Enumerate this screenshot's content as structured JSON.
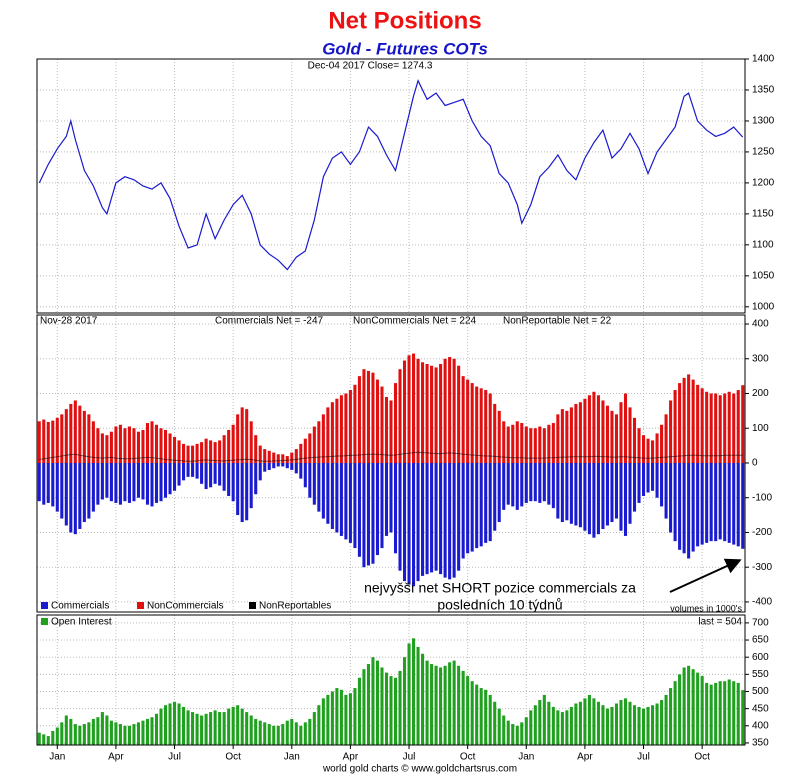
{
  "chart_data": [
    {
      "type": "line",
      "title": "Net Positions",
      "subtitle": "Gold - Futures COTs",
      "header": "Dec-04  2017  Close= 1274.3",
      "color": "#1a1ad0",
      "xlim": [
        -0.5,
        156.5
      ],
      "ylim": [
        990,
        1400
      ],
      "yticks": [
        1000,
        1050,
        1100,
        1150,
        1200,
        1250,
        1300,
        1350,
        1400
      ],
      "grid": true,
      "x": [
        0,
        2,
        4,
        6,
        7,
        8,
        10,
        12,
        14,
        15,
        17,
        19,
        21,
        23,
        25,
        27,
        29,
        31,
        33,
        35,
        37,
        39,
        41,
        43,
        45,
        47,
        49,
        51,
        53,
        55,
        57,
        59,
        61,
        63,
        65,
        67,
        69,
        71,
        73,
        75,
        77,
        79,
        81,
        83,
        84,
        86,
        88,
        90,
        92,
        94,
        96,
        98,
        100,
        102,
        104,
        106,
        107,
        109,
        111,
        113,
        115,
        117,
        119,
        121,
        123,
        125,
        127,
        129,
        131,
        133,
        135,
        137,
        139,
        141,
        143,
        144,
        146,
        148,
        150,
        152,
        154,
        156
      ],
      "values": [
        1200,
        1230,
        1255,
        1275,
        1300,
        1270,
        1220,
        1195,
        1160,
        1150,
        1200,
        1210,
        1205,
        1195,
        1190,
        1200,
        1175,
        1130,
        1095,
        1100,
        1150,
        1110,
        1140,
        1165,
        1180,
        1150,
        1100,
        1085,
        1075,
        1060,
        1080,
        1090,
        1140,
        1210,
        1240,
        1250,
        1230,
        1250,
        1290,
        1275,
        1245,
        1220,
        1280,
        1340,
        1365,
        1335,
        1345,
        1325,
        1330,
        1335,
        1300,
        1275,
        1260,
        1215,
        1200,
        1165,
        1135,
        1165,
        1210,
        1225,
        1245,
        1220,
        1205,
        1240,
        1265,
        1285,
        1240,
        1255,
        1280,
        1255,
        1215,
        1250,
        1270,
        1290,
        1340,
        1345,
        1300,
        1285,
        1275,
        1280,
        1290,
        1274
      ]
    },
    {
      "type": "bar",
      "header": "Nov-28  2017",
      "annotations": [
        "Commercials Net = -247",
        "NonCommercials Net = 224",
        "NonReportable Net = 22"
      ],
      "annotation": [
        "nejvyšší net SHORT pozice commercials za",
        "posledních 10 týdnů"
      ],
      "note": "volumes in 1000's",
      "xlim": [
        -0.5,
        156.5
      ],
      "ylim": [
        -429,
        426
      ],
      "yticks": [
        -400,
        -300,
        -200,
        -100,
        0,
        100,
        200,
        300,
        400
      ],
      "grid": true,
      "series": [
        {
          "name": "Commercials",
          "color": "#1a1ad0",
          "values": [
            -110,
            -120,
            -115,
            -125,
            -140,
            -160,
            -180,
            -200,
            -205,
            -190,
            -170,
            -160,
            -140,
            -120,
            -105,
            -100,
            -110,
            -115,
            -120,
            -110,
            -115,
            -110,
            -100,
            -105,
            -120,
            -125,
            -115,
            -110,
            -100,
            -90,
            -80,
            -65,
            -50,
            -40,
            -40,
            -45,
            -60,
            -75,
            -70,
            -60,
            -65,
            -80,
            -95,
            -110,
            -150,
            -170,
            -165,
            -130,
            -90,
            -50,
            -25,
            -20,
            -15,
            -10,
            -10,
            -15,
            -20,
            -30,
            -45,
            -70,
            -100,
            -120,
            -140,
            -160,
            -175,
            -190,
            -200,
            -210,
            -220,
            -230,
            -245,
            -270,
            -300,
            -295,
            -290,
            -265,
            -245,
            -210,
            -200,
            -260,
            -310,
            -340,
            -350,
            -355,
            -340,
            -325,
            -320,
            -315,
            -310,
            -320,
            -330,
            -335,
            -330,
            -310,
            -275,
            -260,
            -255,
            -245,
            -240,
            -230,
            -225,
            -195,
            -170,
            -135,
            -120,
            -125,
            -135,
            -125,
            -115,
            -110,
            -110,
            -115,
            -110,
            -120,
            -130,
            -160,
            -170,
            -165,
            -175,
            -180,
            -185,
            -195,
            -205,
            -215,
            -205,
            -190,
            -180,
            -170,
            -160,
            -195,
            -210,
            -175,
            -140,
            -115,
            -95,
            -85,
            -80,
            -100,
            -125,
            -160,
            -200,
            -225,
            -250,
            -260,
            -275,
            -255,
            -240,
            -235,
            -230,
            -225,
            -225,
            -220,
            -225,
            -230,
            -235,
            -240,
            -247
          ]
        },
        {
          "name": "NonCommercials",
          "color": "#e01010",
          "values": [
            120,
            125,
            118,
            122,
            130,
            140,
            155,
            170,
            180,
            165,
            150,
            140,
            120,
            100,
            85,
            80,
            90,
            105,
            110,
            100,
            105,
            100,
            90,
            95,
            115,
            120,
            110,
            100,
            95,
            85,
            75,
            65,
            55,
            50,
            50,
            55,
            60,
            70,
            65,
            60,
            65,
            80,
            95,
            110,
            140,
            160,
            155,
            120,
            80,
            50,
            40,
            35,
            30,
            25,
            25,
            20,
            30,
            40,
            55,
            70,
            85,
            105,
            120,
            140,
            160,
            175,
            185,
            195,
            200,
            210,
            225,
            250,
            270,
            265,
            260,
            240,
            220,
            190,
            180,
            230,
            270,
            295,
            310,
            315,
            300,
            290,
            285,
            280,
            275,
            285,
            300,
            305,
            300,
            280,
            250,
            240,
            230,
            220,
            215,
            210,
            200,
            170,
            150,
            120,
            105,
            110,
            120,
            115,
            105,
            100,
            100,
            105,
            100,
            110,
            115,
            140,
            155,
            150,
            160,
            170,
            175,
            185,
            195,
            205,
            195,
            180,
            165,
            150,
            140,
            175,
            200,
            160,
            130,
            100,
            80,
            70,
            65,
            85,
            110,
            140,
            180,
            210,
            230,
            245,
            255,
            240,
            225,
            215,
            205,
            200,
            200,
            195,
            200,
            205,
            200,
            210,
            224
          ]
        },
        {
          "name": "NonReportables",
          "color": "#000000",
          "type": "line",
          "values": [
            10,
            12,
            14,
            16,
            18,
            20,
            22,
            24,
            25,
            22,
            20,
            18,
            16,
            15,
            14,
            15,
            16,
            14,
            13,
            12,
            12,
            13,
            14,
            15,
            16,
            15,
            14,
            12,
            10,
            9,
            8,
            7,
            6,
            5,
            5,
            6,
            8,
            9,
            8,
            7,
            6,
            6,
            7,
            8,
            9,
            10,
            11,
            10,
            8,
            6,
            5,
            5,
            6,
            6,
            7,
            8,
            9,
            10,
            12,
            14,
            15,
            16,
            17,
            18,
            18,
            19,
            20,
            20,
            21,
            22,
            22,
            23,
            24,
            25,
            25,
            25,
            24,
            23,
            22,
            23,
            25,
            27,
            28,
            30,
            31,
            30,
            29,
            28,
            27,
            27,
            28,
            29,
            28,
            27,
            25,
            24,
            23,
            22,
            21,
            20,
            20,
            19,
            18,
            17,
            16,
            15,
            15,
            15,
            14,
            14,
            14,
            14,
            14,
            15,
            15,
            16,
            17,
            17,
            18,
            18,
            18,
            18,
            18,
            19,
            19,
            18,
            18,
            17,
            17,
            18,
            18,
            17,
            16,
            15,
            14,
            14,
            14,
            15,
            16,
            17,
            18,
            19,
            20,
            21,
            22,
            22,
            22,
            21,
            21,
            21,
            21,
            21,
            22,
            22,
            22,
            22,
            22
          ]
        }
      ]
    },
    {
      "type": "bar",
      "header": "last = 504",
      "xlim": [
        -0.5,
        156.5
      ],
      "ylim": [
        344,
        723
      ],
      "yticks": [
        350,
        400,
        450,
        500,
        550,
        600,
        650,
        700
      ],
      "grid": true,
      "xticks": [
        {
          "value": 4,
          "label": "Jan"
        },
        {
          "value": 17,
          "label": "Apr"
        },
        {
          "value": 30,
          "label": "Jul"
        },
        {
          "value": 43,
          "label": "Oct"
        },
        {
          "value": 56,
          "label": "Jan"
        },
        {
          "value": 69,
          "label": "Apr"
        },
        {
          "value": 82,
          "label": "Jul"
        },
        {
          "value": 95,
          "label": "Oct"
        },
        {
          "value": 108,
          "label": "Jan"
        },
        {
          "value": 121,
          "label": "Apr"
        },
        {
          "value": 134,
          "label": "Jul"
        },
        {
          "value": 147,
          "label": "Oct"
        }
      ],
      "series": [
        {
          "name": "Open Interest",
          "color": "#1fa01f",
          "values": [
            380,
            375,
            370,
            385,
            395,
            410,
            430,
            420,
            405,
            400,
            405,
            410,
            420,
            425,
            440,
            430,
            415,
            410,
            405,
            400,
            400,
            405,
            410,
            415,
            420,
            425,
            435,
            450,
            460,
            465,
            470,
            465,
            455,
            445,
            440,
            435,
            430,
            435,
            440,
            445,
            440,
            440,
            450,
            455,
            460,
            450,
            440,
            430,
            420,
            415,
            410,
            405,
            400,
            400,
            405,
            415,
            420,
            410,
            400,
            410,
            420,
            440,
            460,
            480,
            490,
            500,
            510,
            505,
            490,
            495,
            510,
            540,
            565,
            580,
            600,
            590,
            570,
            555,
            545,
            540,
            560,
            600,
            640,
            655,
            630,
            610,
            590,
            580,
            575,
            570,
            575,
            585,
            590,
            575,
            560,
            545,
            530,
            520,
            510,
            505,
            490,
            470,
            450,
            430,
            415,
            405,
            400,
            410,
            425,
            445,
            460,
            475,
            490,
            470,
            455,
            445,
            440,
            445,
            455,
            465,
            470,
            480,
            490,
            480,
            470,
            460,
            450,
            455,
            465,
            475,
            480,
            470,
            460,
            455,
            450,
            455,
            460,
            465,
            475,
            490,
            510,
            530,
            550,
            570,
            575,
            565,
            555,
            545,
            525,
            520,
            525,
            530,
            530,
            535,
            530,
            525,
            504
          ]
        }
      ]
    }
  ],
  "footer": "world gold charts © www.goldchartsrus.com"
}
